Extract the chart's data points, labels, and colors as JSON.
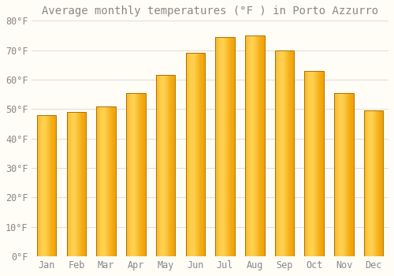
{
  "title": "Average monthly temperatures (°F ) in Porto Azzurro",
  "months": [
    "Jan",
    "Feb",
    "Mar",
    "Apr",
    "May",
    "Jun",
    "Jul",
    "Aug",
    "Sep",
    "Oct",
    "Nov",
    "Dec"
  ],
  "values": [
    48,
    49,
    51,
    55.5,
    61.5,
    69,
    74.5,
    75,
    70,
    63,
    55.5,
    49.5
  ],
  "bar_color_light": "#FFD050",
  "bar_color_dark": "#F0A000",
  "bar_edge_color": "#B07000",
  "background_color": "#FFFDF5",
  "grid_color": "#E0E0E0",
  "text_color": "#888888",
  "ylim": [
    0,
    80
  ],
  "yticks": [
    0,
    10,
    20,
    30,
    40,
    50,
    60,
    70,
    80
  ],
  "ylabel_suffix": "°F",
  "title_fontsize": 10,
  "tick_fontsize": 8.5,
  "bar_width": 0.65
}
